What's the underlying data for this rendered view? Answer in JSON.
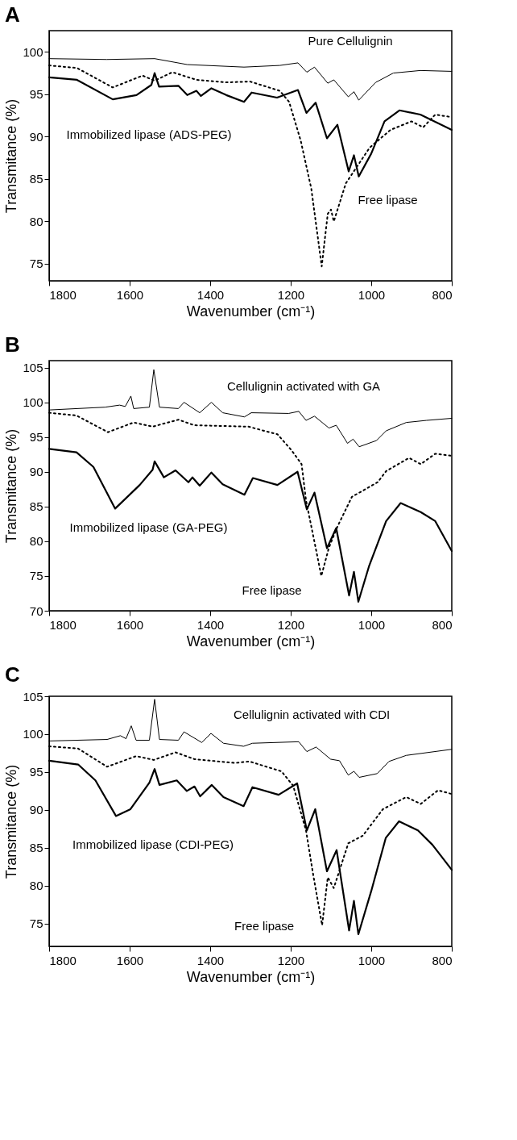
{
  "chart_data": [
    {
      "type": "line",
      "title": "A",
      "xlabel": "Wavenumber (cm⁻¹)",
      "ylabel": "Transmitance (%)",
      "xlim": [
        1800,
        800
      ],
      "xticks": [
        1800,
        1600,
        1400,
        1200,
        1000,
        800
      ],
      "ylim": [
        73,
        102.5
      ],
      "yticks": [
        75,
        80,
        85,
        90,
        95,
        100
      ],
      "series": [
        {
          "name": "Pure Cellulignin",
          "color": "#000000",
          "line_style": "solid",
          "x": [
            1800,
            1657,
            1538,
            1457,
            1316,
            1227,
            1182,
            1160,
            1141,
            1108,
            1093,
            1057,
            1043,
            1031,
            989,
            945,
            878,
            800
          ],
          "values": [
            99.2,
            99.1,
            99.2,
            98.5,
            98.2,
            98.4,
            98.7,
            97.6,
            98.2,
            96.3,
            96.7,
            94.7,
            95.3,
            94.3,
            96.4,
            97.5,
            97.8,
            97.7
          ]
        },
        {
          "name": "Immobilized lipase (ADS-PEG)",
          "color": "#000000",
          "line_style": "solid",
          "x": [
            1800,
            1731,
            1642,
            1583,
            1546,
            1538,
            1527,
            1479,
            1457,
            1434,
            1423,
            1397,
            1360,
            1316,
            1297,
            1234,
            1182,
            1161,
            1138,
            1110,
            1084,
            1056,
            1043,
            1031,
            1000,
            967,
            930,
            878,
            800
          ],
          "values": [
            97.0,
            96.7,
            94.4,
            94.9,
            96.1,
            97.5,
            95.9,
            96.0,
            94.9,
            95.4,
            94.8,
            95.7,
            94.9,
            94.1,
            95.2,
            94.6,
            95.5,
            92.8,
            94.0,
            89.8,
            91.4,
            85.9,
            87.8,
            85.3,
            88.0,
            91.8,
            93.1,
            92.6,
            90.8
          ]
        },
        {
          "name": "Free lipase",
          "color": "#000000",
          "line_style": "dotted",
          "x": [
            1800,
            1731,
            1642,
            1568,
            1538,
            1494,
            1434,
            1360,
            1301,
            1227,
            1204,
            1175,
            1149,
            1123,
            1108,
            1100,
            1093,
            1063,
            1004,
            952,
            900,
            871,
            841,
            800
          ],
          "values": [
            98.4,
            98.1,
            95.8,
            97.2,
            96.6,
            97.6,
            96.7,
            96.4,
            96.5,
            95.4,
            94.1,
            89.5,
            83.9,
            74.7,
            80.9,
            81.4,
            80.0,
            84.5,
            88.7,
            90.8,
            91.8,
            91.1,
            92.6,
            92.3
          ]
        }
      ]
    },
    {
      "type": "line",
      "title": "B",
      "xlabel": "Wavenumber (cm⁻¹)",
      "ylabel": "Transmitance (%)",
      "xlim": [
        1800,
        800
      ],
      "xticks": [
        1800,
        1600,
        1400,
        1200,
        1000,
        800
      ],
      "ylim": [
        70,
        106
      ],
      "yticks": [
        70,
        75,
        80,
        85,
        90,
        95,
        100,
        105
      ],
      "series": [
        {
          "name": "Cellulignin activated with GA",
          "color": "#000000",
          "line_style": "solid",
          "x": [
            1800,
            1661,
            1625,
            1611,
            1597,
            1590,
            1551,
            1540,
            1526,
            1479,
            1465,
            1426,
            1397,
            1369,
            1315,
            1298,
            1205,
            1180,
            1162,
            1141,
            1105,
            1087,
            1059,
            1045,
            1030,
            987,
            963,
            913,
            863,
            800
          ],
          "values": [
            98.9,
            99.3,
            99.6,
            99.4,
            100.9,
            99.1,
            99.3,
            104.7,
            99.3,
            99.1,
            100.0,
            98.5,
            100.0,
            98.5,
            97.9,
            98.5,
            98.4,
            98.7,
            97.4,
            98.0,
            96.3,
            96.7,
            94.1,
            94.7,
            93.6,
            94.5,
            95.9,
            97.1,
            97.4,
            97.7
          ]
        },
        {
          "name": "Immobilized lipase (GA-PEG)",
          "color": "#000000",
          "line_style": "solid",
          "x": [
            1800,
            1732,
            1690,
            1636,
            1575,
            1543,
            1538,
            1515,
            1486,
            1454,
            1444,
            1426,
            1397,
            1369,
            1315,
            1294,
            1233,
            1183,
            1160,
            1141,
            1110,
            1087,
            1055,
            1043,
            1032,
            1005,
            963,
            927,
            877,
            841,
            800
          ],
          "values": [
            93.3,
            92.8,
            90.7,
            84.7,
            88.1,
            90.3,
            91.5,
            89.2,
            90.2,
            88.5,
            89.2,
            88.0,
            89.9,
            88.2,
            86.7,
            89.1,
            88.1,
            90.0,
            84.6,
            87.0,
            79.0,
            81.9,
            72.2,
            75.6,
            71.3,
            76.5,
            82.9,
            85.5,
            84.2,
            82.9,
            78.6
          ]
        },
        {
          "name": "Free lipase",
          "color": "#000000",
          "line_style": "dotted",
          "x": [
            1800,
            1732,
            1654,
            1590,
            1543,
            1479,
            1440,
            1305,
            1233,
            1198,
            1173,
            1162,
            1141,
            1124,
            1105,
            1084,
            1048,
            984,
            963,
            906,
            877,
            841,
            800
          ],
          "values": [
            98.5,
            98.1,
            95.7,
            97.1,
            96.5,
            97.5,
            96.7,
            96.5,
            95.4,
            93.1,
            91.1,
            85.9,
            79.9,
            75.0,
            79.1,
            82.1,
            86.4,
            88.5,
            90.1,
            92.0,
            91.1,
            92.6,
            92.3
          ]
        }
      ]
    },
    {
      "type": "line",
      "title": "C",
      "xlabel": "Wavenumber (cm⁻¹)",
      "ylabel": "Transmitance (%)",
      "xlim": [
        1800,
        800
      ],
      "xticks": [
        1800,
        1600,
        1400,
        1200,
        1000,
        800
      ],
      "ylim": [
        72,
        105
      ],
      "yticks": [
        75,
        80,
        85,
        90,
        95,
        100,
        105
      ],
      "series": [
        {
          "name": "Cellulignin activated with CDI",
          "color": "#000000",
          "line_style": "solid",
          "x": [
            1800,
            1656,
            1623,
            1609,
            1596,
            1584,
            1551,
            1538,
            1526,
            1479,
            1465,
            1421,
            1398,
            1367,
            1317,
            1295,
            1180,
            1160,
            1137,
            1101,
            1079,
            1057,
            1043,
            1030,
            985,
            956,
            913,
            800
          ],
          "values": [
            99.1,
            99.3,
            99.8,
            99.4,
            101.1,
            99.2,
            99.2,
            104.6,
            99.3,
            99.2,
            100.3,
            98.9,
            100.1,
            98.8,
            98.4,
            98.8,
            99.0,
            97.7,
            98.3,
            96.7,
            96.5,
            94.6,
            95.1,
            94.3,
            94.8,
            96.4,
            97.2,
            98.0
          ]
        },
        {
          "name": "Immobilized lipase (CDI-PEG)",
          "color": "#000000",
          "line_style": "solid",
          "x": [
            1800,
            1728,
            1685,
            1634,
            1598,
            1551,
            1538,
            1526,
            1483,
            1458,
            1439,
            1425,
            1396,
            1367,
            1317,
            1295,
            1230,
            1184,
            1160,
            1139,
            1110,
            1086,
            1055,
            1043,
            1032,
            1000,
            964,
            931,
            884,
            848,
            800
          ],
          "values": [
            96.5,
            96.0,
            93.9,
            89.2,
            90.1,
            93.6,
            95.4,
            93.3,
            93.9,
            92.5,
            93.1,
            91.8,
            93.3,
            91.7,
            90.5,
            93.0,
            92.0,
            93.5,
            87.3,
            90.1,
            81.9,
            84.7,
            74.1,
            78.0,
            73.6,
            79.3,
            86.3,
            88.5,
            87.3,
            85.4,
            82.1
          ]
        },
        {
          "name": "Free lipase",
          "color": "#000000",
          "line_style": "dotted",
          "x": [
            1800,
            1728,
            1656,
            1584,
            1540,
            1486,
            1439,
            1339,
            1303,
            1223,
            1194,
            1162,
            1144,
            1122,
            1108,
            1093,
            1057,
            1021,
            971,
            913,
            877,
            834,
            800
          ],
          "values": [
            98.4,
            98.1,
            95.7,
            97.1,
            96.6,
            97.6,
            96.7,
            96.2,
            96.4,
            95.1,
            93.2,
            87.3,
            81.4,
            74.8,
            81.1,
            79.7,
            85.6,
            86.6,
            90.1,
            91.7,
            90.8,
            92.6,
            92.1
          ]
        }
      ]
    }
  ]
}
